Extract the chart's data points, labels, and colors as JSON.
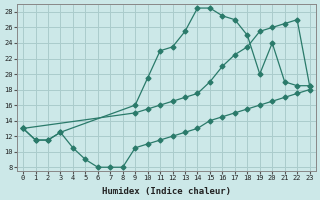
{
  "xlabel": "Humidex (Indice chaleur)",
  "background_color": "#cce8e8",
  "grid_color": "#aacccc",
  "line_color": "#2a7a6a",
  "xlim": [
    -0.5,
    23.5
  ],
  "ylim": [
    7.5,
    29
  ],
  "xticks": [
    0,
    1,
    2,
    3,
    4,
    5,
    6,
    7,
    8,
    9,
    10,
    11,
    12,
    13,
    14,
    15,
    16,
    17,
    18,
    19,
    20,
    21,
    22,
    23
  ],
  "yticks": [
    8,
    10,
    12,
    14,
    16,
    18,
    20,
    22,
    24,
    26,
    28
  ],
  "curve_top_x": [
    0,
    1,
    2,
    3,
    9,
    10,
    11,
    12,
    13,
    14,
    15,
    16,
    17,
    18,
    19,
    20,
    21,
    22,
    23
  ],
  "curve_top_y": [
    13,
    11.5,
    11.5,
    12.5,
    16,
    19.5,
    23,
    23.5,
    25.5,
    28.5,
    28.5,
    27.5,
    27,
    25,
    20,
    24,
    19,
    18.5,
    18.5
  ],
  "curve_mid_x": [
    0,
    9,
    10,
    11,
    12,
    13,
    14,
    15,
    16,
    17,
    18,
    19,
    20,
    21,
    22,
    23
  ],
  "curve_mid_y": [
    13,
    15,
    15.5,
    16,
    16.5,
    17,
    17.5,
    19,
    21,
    22.5,
    23.5,
    25.5,
    26,
    26.5,
    27,
    18.5
  ],
  "curve_bot_x": [
    0,
    1,
    2,
    3,
    4,
    5,
    6,
    7,
    8,
    9,
    10,
    11,
    12,
    13,
    14,
    15,
    16,
    17,
    18,
    19,
    20,
    21,
    22,
    23
  ],
  "curve_bot_y": [
    13,
    11.5,
    11.5,
    12.5,
    10.5,
    9,
    8,
    8,
    8,
    10.5,
    11,
    11.5,
    12,
    12.5,
    13,
    14,
    14.5,
    15,
    15.5,
    16,
    16.5,
    17,
    17.5,
    18
  ]
}
